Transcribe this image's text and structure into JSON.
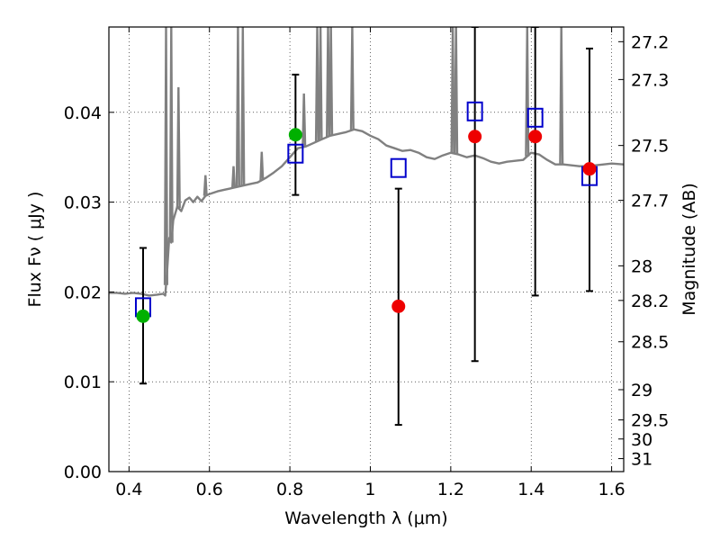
{
  "chart_data": {
    "type": "scatter",
    "xlabel": "Wavelength  λ (μm)",
    "ylabel": "Flux  Fν  ( μJy )",
    "ylabel_right": "Magnitude (AB)",
    "xlim": [
      0.35,
      1.63
    ],
    "ylim": [
      0.0,
      0.0495
    ],
    "grid": true,
    "x_ticks": [
      0.4,
      0.6,
      0.8,
      1.0,
      1.2,
      1.4,
      1.6
    ],
    "x_tick_labels": [
      "0.4",
      "0.6",
      "0.8",
      "1",
      "1.2",
      "1.4",
      "1.6"
    ],
    "y_ticks": [
      0.0,
      0.01,
      0.02,
      0.03,
      0.04
    ],
    "y_tick_labels": [
      "0.00",
      "0.01",
      "0.02",
      "0.03",
      "0.04"
    ],
    "right_ticks": [
      {
        "mag": 27.2,
        "label": "27.2"
      },
      {
        "mag": 27.3,
        "label": "27.3"
      },
      {
        "mag": 27.5,
        "label": "27.5"
      },
      {
        "mag": 27.7,
        "label": "27.7"
      },
      {
        "mag": 28.0,
        "label": "28"
      },
      {
        "mag": 28.2,
        "label": "28.2"
      },
      {
        "mag": 28.5,
        "label": "28.5"
      },
      {
        "mag": 29.0,
        "label": "29"
      },
      {
        "mag": 29.5,
        "label": "29.5"
      },
      {
        "mag": 30.0,
        "label": "30"
      },
      {
        "mag": 31.0,
        "label": "31"
      }
    ],
    "series": [
      {
        "kind": "line",
        "color": "#808080",
        "points": [
          [
            0.35,
            0.0199
          ],
          [
            0.37,
            0.0199
          ],
          [
            0.39,
            0.0198
          ],
          [
            0.41,
            0.0199
          ],
          [
            0.43,
            0.0198
          ],
          [
            0.45,
            0.0196
          ],
          [
            0.47,
            0.0197
          ],
          [
            0.485,
            0.0198
          ],
          [
            0.49,
            0.0196
          ],
          [
            0.495,
            0.0225
          ],
          [
            0.5,
            0.026
          ],
          [
            0.505,
            0.0255
          ],
          [
            0.51,
            0.028
          ],
          [
            0.52,
            0.0295
          ],
          [
            0.53,
            0.029
          ],
          [
            0.54,
            0.0302
          ],
          [
            0.55,
            0.0305
          ],
          [
            0.56,
            0.03
          ],
          [
            0.57,
            0.0306
          ],
          [
            0.58,
            0.0301
          ],
          [
            0.59,
            0.0307
          ],
          [
            0.6,
            0.0309
          ],
          [
            0.62,
            0.0312
          ],
          [
            0.64,
            0.0314
          ],
          [
            0.66,
            0.0316
          ],
          [
            0.68,
            0.0318
          ],
          [
            0.7,
            0.032
          ],
          [
            0.72,
            0.0322
          ],
          [
            0.74,
            0.0327
          ],
          [
            0.76,
            0.0333
          ],
          [
            0.78,
            0.034
          ],
          [
            0.8,
            0.035
          ],
          [
            0.82,
            0.036
          ],
          [
            0.84,
            0.0362
          ],
          [
            0.86,
            0.0366
          ],
          [
            0.88,
            0.037
          ],
          [
            0.9,
            0.0374
          ],
          [
            0.92,
            0.0376
          ],
          [
            0.94,
            0.0378
          ],
          [
            0.96,
            0.0381
          ],
          [
            0.98,
            0.0379
          ],
          [
            1.0,
            0.0374
          ],
          [
            1.02,
            0.037
          ],
          [
            1.04,
            0.0363
          ],
          [
            1.06,
            0.036
          ],
          [
            1.08,
            0.0357
          ],
          [
            1.1,
            0.0358
          ],
          [
            1.12,
            0.0355
          ],
          [
            1.14,
            0.035
          ],
          [
            1.16,
            0.0348
          ],
          [
            1.18,
            0.0352
          ],
          [
            1.2,
            0.0355
          ],
          [
            1.22,
            0.0353
          ],
          [
            1.24,
            0.035
          ],
          [
            1.26,
            0.0352
          ],
          [
            1.28,
            0.0349
          ],
          [
            1.3,
            0.0345
          ],
          [
            1.32,
            0.0343
          ],
          [
            1.34,
            0.0345
          ],
          [
            1.36,
            0.0346
          ],
          [
            1.38,
            0.0347
          ],
          [
            1.4,
            0.0355
          ],
          [
            1.42,
            0.0353
          ],
          [
            1.44,
            0.0347
          ],
          [
            1.46,
            0.0342
          ],
          [
            1.48,
            0.0342
          ],
          [
            1.5,
            0.0341
          ],
          [
            1.52,
            0.034
          ],
          [
            1.54,
            0.034
          ],
          [
            1.56,
            0.0341
          ],
          [
            1.58,
            0.0342
          ],
          [
            1.6,
            0.0343
          ],
          [
            1.63,
            0.0342
          ]
        ],
        "emission_lines": [
          {
            "x": 0.492,
            "peak": 0.0495
          },
          {
            "x": 0.505,
            "peak": 0.0495
          },
          {
            "x": 0.523,
            "peak": 0.0428
          },
          {
            "x": 0.59,
            "peak": 0.033
          },
          {
            "x": 0.66,
            "peak": 0.034
          },
          {
            "x": 0.671,
            "peak": 0.0495
          },
          {
            "x": 0.683,
            "peak": 0.0495
          },
          {
            "x": 0.73,
            "peak": 0.0356
          },
          {
            "x": 0.835,
            "peak": 0.0421
          },
          {
            "x": 0.868,
            "peak": 0.0495
          },
          {
            "x": 0.876,
            "peak": 0.0495
          },
          {
            "x": 0.895,
            "peak": 0.0495
          },
          {
            "x": 0.902,
            "peak": 0.0495
          },
          {
            "x": 0.955,
            "peak": 0.0495
          },
          {
            "x": 1.205,
            "peak": 0.0495
          },
          {
            "x": 1.213,
            "peak": 0.0495
          },
          {
            "x": 1.39,
            "peak": 0.0495
          },
          {
            "x": 1.475,
            "peak": 0.0495
          }
        ]
      },
      {
        "kind": "points",
        "marker": "circle",
        "color": "#00b000",
        "points": [
          {
            "x": 0.435,
            "y": 0.0173,
            "err": [
              0.0098,
              0.0249
            ]
          },
          {
            "x": 0.814,
            "y": 0.0375,
            "err": [
              0.0308,
              0.0442
            ]
          }
        ]
      },
      {
        "kind": "points",
        "marker": "circle",
        "color": "#ee0000",
        "points": [
          {
            "x": 1.07,
            "y": 0.0184,
            "err": [
              0.0052,
              0.0315
            ]
          },
          {
            "x": 1.26,
            "y": 0.0373,
            "err": [
              0.0123,
              0.0495
            ]
          },
          {
            "x": 1.41,
            "y": 0.0373,
            "err": [
              0.0196,
              0.0495
            ]
          },
          {
            "x": 1.545,
            "y": 0.0337,
            "err": [
              0.0201,
              0.0471
            ]
          }
        ]
      },
      {
        "kind": "points",
        "marker": "open-square",
        "color": "#0000cc",
        "points": [
          {
            "x": 0.435,
            "y": 0.0183
          },
          {
            "x": 0.814,
            "y": 0.0354
          },
          {
            "x": 1.07,
            "y": 0.0338
          },
          {
            "x": 1.26,
            "y": 0.0401
          },
          {
            "x": 1.41,
            "y": 0.0394
          },
          {
            "x": 1.545,
            "y": 0.0329
          }
        ]
      }
    ]
  }
}
